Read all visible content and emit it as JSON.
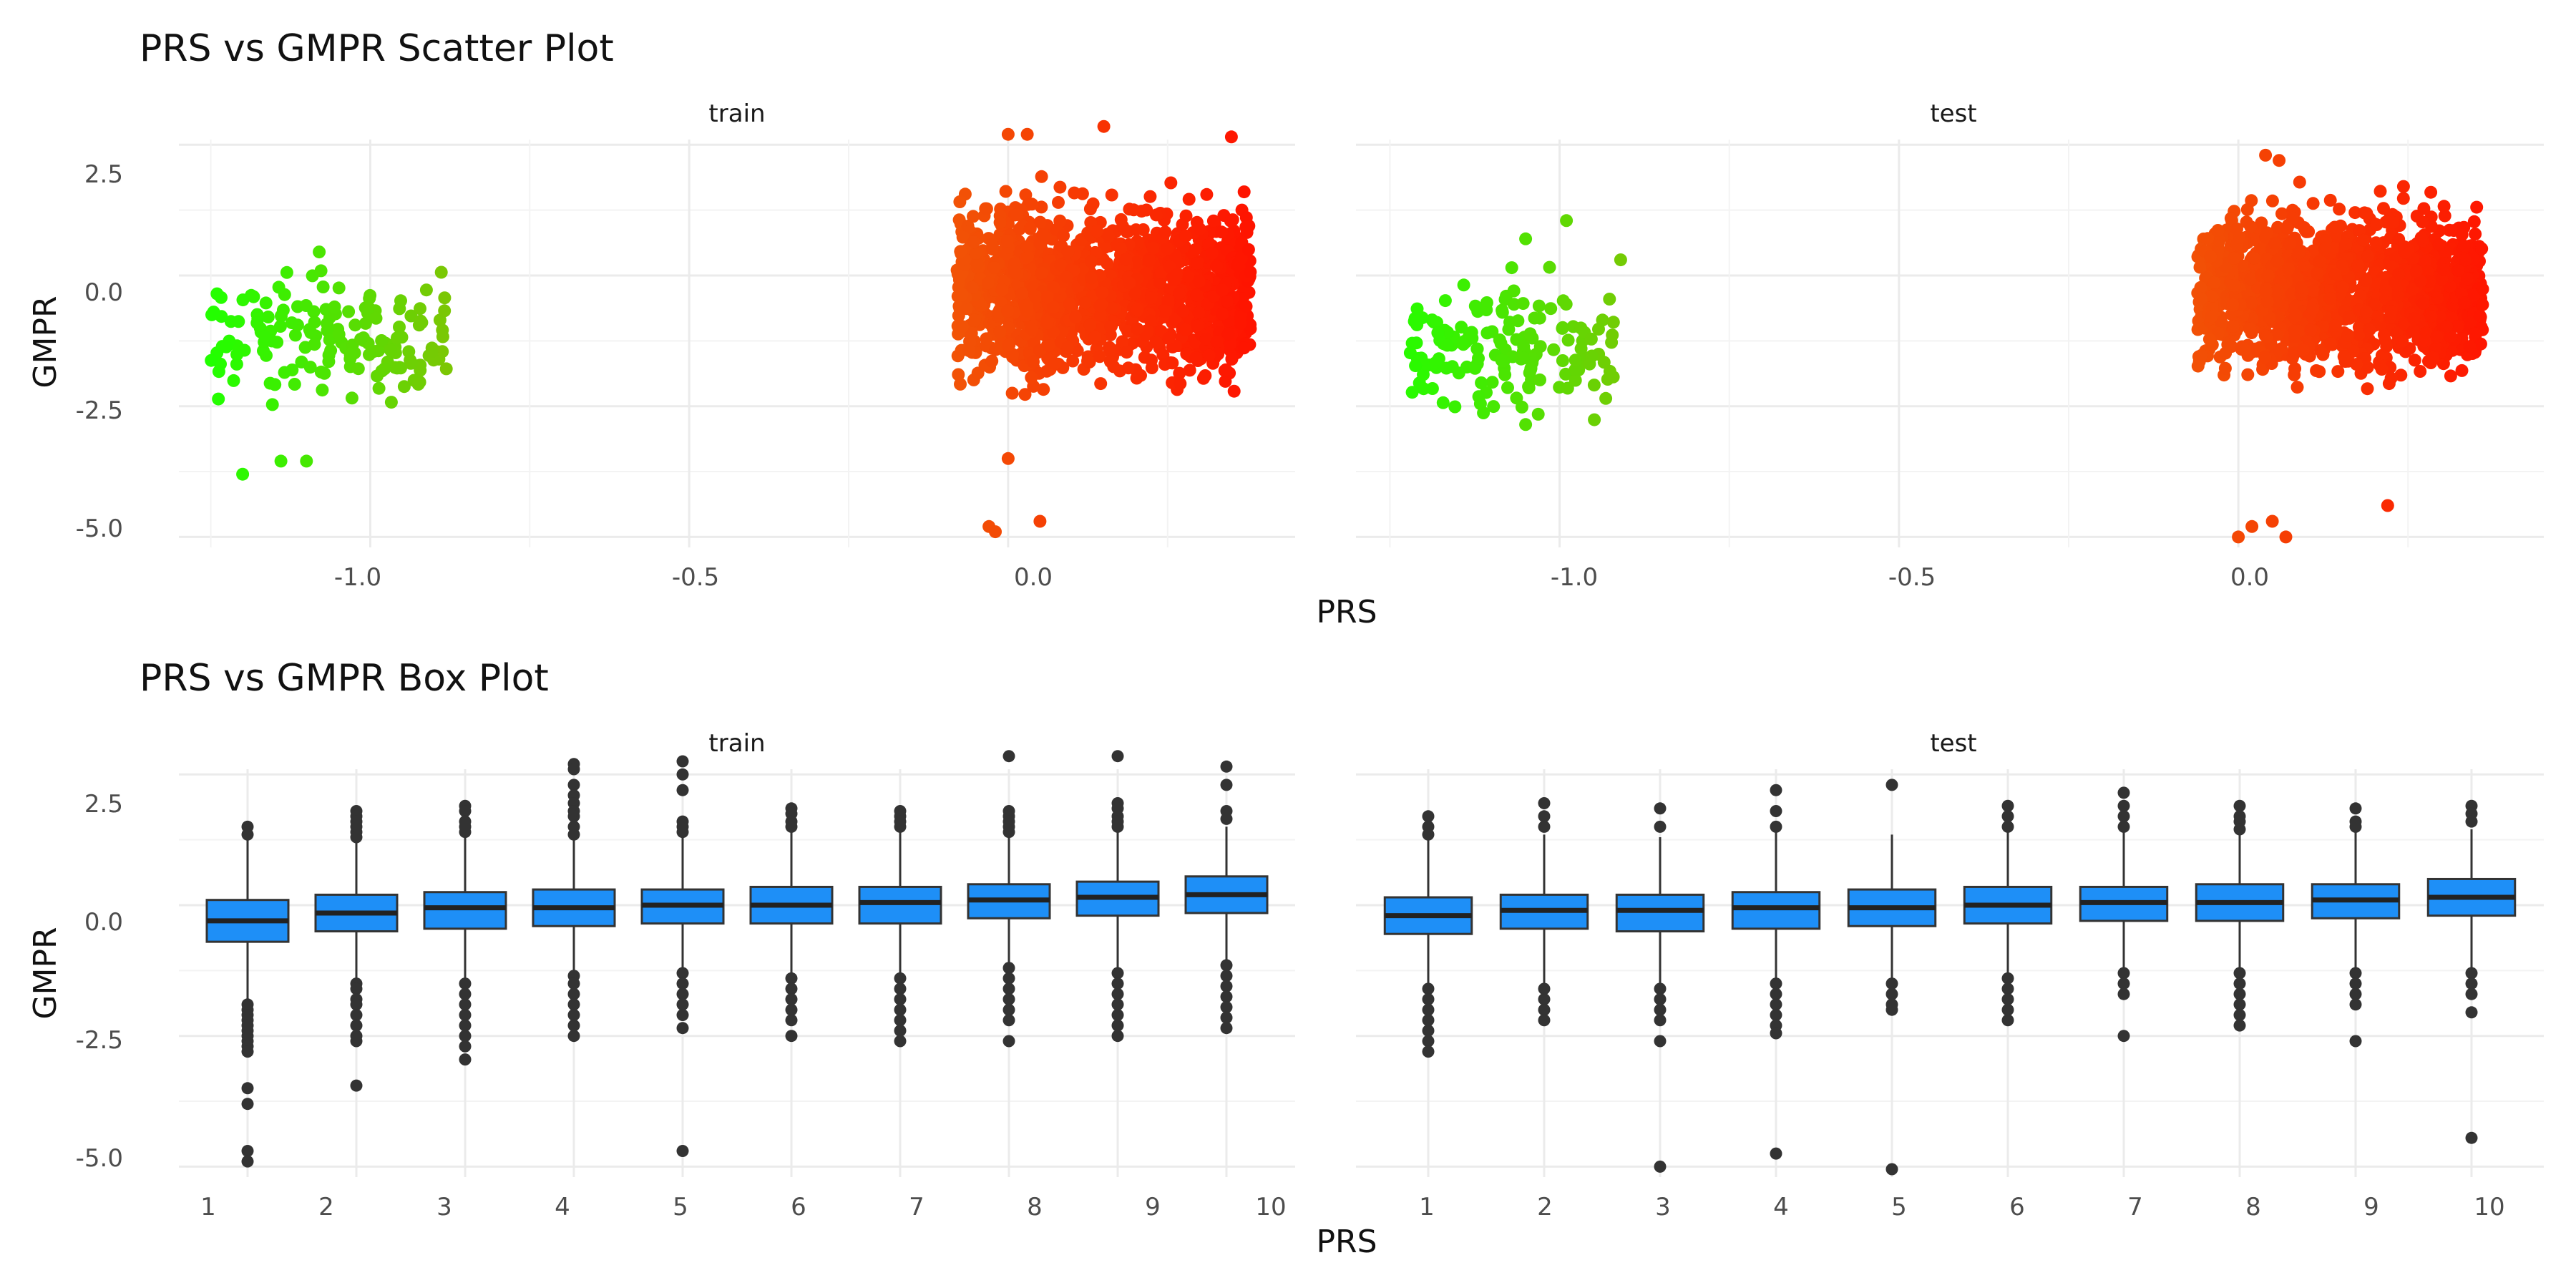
{
  "chart_data": [
    {
      "type": "scatter",
      "title": "PRS vs GMPR Scatter Plot",
      "xlabel": "PRS",
      "ylabel": "GMPR",
      "xlim": [
        -1.3,
        0.45
      ],
      "ylim": [
        -5.2,
        2.6
      ],
      "xticks": [
        -1.0,
        -0.5,
        0.0
      ],
      "xtick_labels": [
        "-1.0",
        "-0.5",
        "0.0"
      ],
      "yticks": [
        2.5,
        0.0,
        -2.5,
        -5.0
      ],
      "ytick_labels": [
        "2.5",
        "0.0",
        "-2.5",
        "-5.0"
      ],
      "grid": true,
      "legend": "none",
      "color_scale": {
        "low": "#22ff00",
        "high": "#ff1100",
        "mid": "#e8820a"
      },
      "panels": [
        {
          "name": "train",
          "clusters": [
            {
              "x_range": [
                -1.25,
                -0.88
              ],
              "y_center": -1.2,
              "y_spread": 0.55
            },
            {
              "x_range": [
                -0.08,
                0.38
              ],
              "y_center": -0.3,
              "y_spread": 0.75
            }
          ],
          "outliers": [
            {
              "x": -1.08,
              "y": 0.45
            },
            {
              "x": -1.2,
              "y": -3.8
            },
            {
              "x": -1.14,
              "y": -3.55
            },
            {
              "x": -1.1,
              "y": -3.55
            },
            {
              "x": -0.03,
              "y": -4.8
            },
            {
              "x": -0.02,
              "y": -4.9
            },
            {
              "x": 0.05,
              "y": -4.7
            },
            {
              "x": 0.0,
              "y": -3.5
            },
            {
              "x": 0.15,
              "y": 2.85
            },
            {
              "x": 0.35,
              "y": 2.65
            },
            {
              "x": 0.37,
              "y": 1.6
            },
            {
              "x": 0.0,
              "y": 2.7
            },
            {
              "x": 0.03,
              "y": 2.7
            }
          ]
        },
        {
          "name": "test",
          "clusters": [
            {
              "x_range": [
                -1.22,
                -0.92
              ],
              "y_center": -1.4,
              "y_spread": 0.55
            },
            {
              "x_range": [
                -0.06,
                0.36
              ],
              "y_center": -0.3,
              "y_spread": 0.7
            }
          ],
          "outliers": [
            {
              "x": -0.99,
              "y": 1.05
            },
            {
              "x": -0.91,
              "y": 0.3
            },
            {
              "x": -1.05,
              "y": 0.7
            },
            {
              "x": -1.05,
              "y": -2.85
            },
            {
              "x": 0.05,
              "y": -4.7
            },
            {
              "x": 0.02,
              "y": -4.8
            },
            {
              "x": 0.07,
              "y": -5.0
            },
            {
              "x": 0.0,
              "y": -5.0
            },
            {
              "x": 0.22,
              "y": -4.4
            },
            {
              "x": 0.04,
              "y": 2.3
            },
            {
              "x": 0.06,
              "y": 2.2
            }
          ]
        }
      ]
    },
    {
      "type": "box",
      "title": "PRS vs GMPR Box Plot",
      "xlabel": "PRS",
      "ylabel": "GMPR",
      "ylim": [
        -5.2,
        2.6
      ],
      "yticks": [
        2.5,
        0.0,
        -2.5,
        -5.0
      ],
      "ytick_labels": [
        "2.5",
        "0.0",
        "-2.5",
        "-5.0"
      ],
      "categories": [
        "1",
        "2",
        "3",
        "4",
        "5",
        "6",
        "7",
        "8",
        "9",
        "10"
      ],
      "box_color": "#1e8ff7",
      "grid": true,
      "legend": "none",
      "panels": [
        {
          "name": "train",
          "boxes": [
            {
              "q1": -0.7,
              "median": -0.3,
              "q3": 0.1,
              "whisker_low": -1.85,
              "whisker_high": 1.3,
              "outliers": [
                1.5,
                1.35,
                -1.9,
                -2.0,
                -2.1,
                -2.2,
                -2.3,
                -2.4,
                -2.5,
                -2.6,
                -2.7,
                -2.8,
                -3.5,
                -3.8,
                -4.7,
                -4.9
              ]
            },
            {
              "q1": -0.5,
              "median": -0.15,
              "q3": 0.2,
              "whisker_low": -1.5,
              "whisker_high": 1.2,
              "outliers": [
                1.8,
                1.7,
                1.6,
                1.5,
                1.4,
                1.3,
                -1.5,
                -1.6,
                -1.8,
                -1.9,
                -2.1,
                -2.3,
                -2.5,
                -2.6,
                -3.45
              ]
            },
            {
              "q1": -0.45,
              "median": -0.05,
              "q3": 0.25,
              "whisker_low": -1.5,
              "whisker_high": 1.3,
              "outliers": [
                1.9,
                1.8,
                1.6,
                1.5,
                1.4,
                -1.5,
                -1.7,
                -1.9,
                -2.1,
                -2.3,
                -2.5,
                -2.7,
                -2.95
              ]
            },
            {
              "q1": -0.4,
              "median": -0.05,
              "q3": 0.3,
              "whisker_low": -1.3,
              "whisker_high": 1.3,
              "outliers": [
                2.7,
                2.6,
                2.3,
                2.1,
                1.95,
                1.8,
                1.7,
                1.5,
                1.35,
                -1.35,
                -1.5,
                -1.7,
                -1.9,
                -2.1,
                -2.3,
                -2.5
              ]
            },
            {
              "q1": -0.35,
              "median": 0.0,
              "q3": 0.3,
              "whisker_low": -1.3,
              "whisker_high": 1.3,
              "outliers": [
                2.75,
                2.5,
                2.2,
                1.6,
                1.5,
                1.4,
                -1.3,
                -1.5,
                -1.7,
                -1.9,
                -2.1,
                -2.35,
                -4.7
              ]
            },
            {
              "q1": -0.35,
              "median": 0.0,
              "q3": 0.35,
              "whisker_low": -1.35,
              "whisker_high": 1.4,
              "outliers": [
                1.85,
                1.75,
                1.6,
                1.5,
                -1.4,
                -1.6,
                -1.8,
                -2.0,
                -2.2,
                -2.5
              ]
            },
            {
              "q1": -0.35,
              "median": 0.05,
              "q3": 0.35,
              "whisker_low": -1.35,
              "whisker_high": 1.4,
              "outliers": [
                1.8,
                1.7,
                1.6,
                1.5,
                -1.4,
                -1.6,
                -1.8,
                -2.0,
                -2.2,
                -2.4,
                -2.6
              ]
            },
            {
              "q1": -0.25,
              "median": 0.1,
              "q3": 0.4,
              "whisker_low": -1.2,
              "whisker_high": 1.35,
              "outliers": [
                2.85,
                1.8,
                1.7,
                1.6,
                1.5,
                1.4,
                -1.2,
                -1.4,
                -1.6,
                -1.8,
                -2.0,
                -2.2,
                -2.6
              ]
            },
            {
              "q1": -0.2,
              "median": 0.15,
              "q3": 0.45,
              "whisker_low": -1.2,
              "whisker_high": 1.4,
              "outliers": [
                2.85,
                1.95,
                1.85,
                1.7,
                1.6,
                1.5,
                -1.3,
                -1.5,
                -1.7,
                -1.9,
                -2.1,
                -2.3,
                -2.5
              ]
            },
            {
              "q1": -0.15,
              "median": 0.2,
              "q3": 0.55,
              "whisker_low": -1.1,
              "whisker_high": 1.5,
              "outliers": [
                2.65,
                2.3,
                1.8,
                1.65,
                -1.15,
                -1.35,
                -1.55,
                -1.75,
                -1.95,
                -2.15,
                -2.35
              ]
            }
          ]
        },
        {
          "name": "test",
          "boxes": [
            {
              "q1": -0.55,
              "median": -0.2,
              "q3": 0.15,
              "whisker_low": -1.6,
              "whisker_high": 1.25,
              "outliers": [
                1.7,
                1.5,
                1.35,
                -1.6,
                -1.8,
                -2.0,
                -2.2,
                -2.4,
                -2.6,
                -2.8
              ]
            },
            {
              "q1": -0.45,
              "median": -0.1,
              "q3": 0.2,
              "whisker_low": -1.55,
              "whisker_high": 1.35,
              "outliers": [
                1.95,
                1.7,
                1.5,
                -1.6,
                -1.8,
                -2.0,
                -2.2
              ]
            },
            {
              "q1": -0.5,
              "median": -0.1,
              "q3": 0.2,
              "whisker_low": -1.5,
              "whisker_high": 1.3,
              "outliers": [
                1.85,
                1.5,
                -1.6,
                -1.8,
                -2.0,
                -2.2,
                -2.6,
                -5.0
              ]
            },
            {
              "q1": -0.45,
              "median": -0.05,
              "q3": 0.25,
              "whisker_low": -1.45,
              "whisker_high": 1.4,
              "outliers": [
                2.2,
                1.8,
                1.5,
                -1.5,
                -1.7,
                -1.9,
                -2.1,
                -2.3,
                -2.45,
                -4.75
              ]
            },
            {
              "q1": -0.4,
              "median": -0.05,
              "q3": 0.3,
              "whisker_low": -1.45,
              "whisker_high": 1.35,
              "outliers": [
                2.3,
                -1.5,
                -1.7,
                -1.9,
                -2.0,
                -5.05
              ]
            },
            {
              "q1": -0.35,
              "median": 0.0,
              "q3": 0.35,
              "whisker_low": -1.35,
              "whisker_high": 1.4,
              "outliers": [
                1.9,
                1.7,
                1.5,
                -1.4,
                -1.6,
                -1.8,
                -2.0,
                -2.2
              ]
            },
            {
              "q1": -0.3,
              "median": 0.05,
              "q3": 0.35,
              "whisker_low": -1.3,
              "whisker_high": 1.4,
              "outliers": [
                2.15,
                1.9,
                1.7,
                1.5,
                -1.3,
                -1.5,
                -1.7,
                -2.5
              ]
            },
            {
              "q1": -0.3,
              "median": 0.05,
              "q3": 0.4,
              "whisker_low": -1.3,
              "whisker_high": 1.4,
              "outliers": [
                1.9,
                1.7,
                1.6,
                1.45,
                -1.3,
                -1.5,
                -1.7,
                -1.9,
                -2.1,
                -2.3
              ]
            },
            {
              "q1": -0.25,
              "median": 0.1,
              "q3": 0.4,
              "whisker_low": -1.25,
              "whisker_high": 1.4,
              "outliers": [
                1.85,
                1.6,
                1.5,
                -1.3,
                -1.5,
                -1.7,
                -1.9,
                -2.6
              ]
            },
            {
              "q1": -0.2,
              "median": 0.15,
              "q3": 0.5,
              "whisker_low": -1.2,
              "whisker_high": 1.45,
              "outliers": [
                1.9,
                1.75,
                1.6,
                -1.3,
                -1.5,
                -1.7,
                -2.05,
                -4.45
              ]
            }
          ]
        }
      ]
    }
  ]
}
